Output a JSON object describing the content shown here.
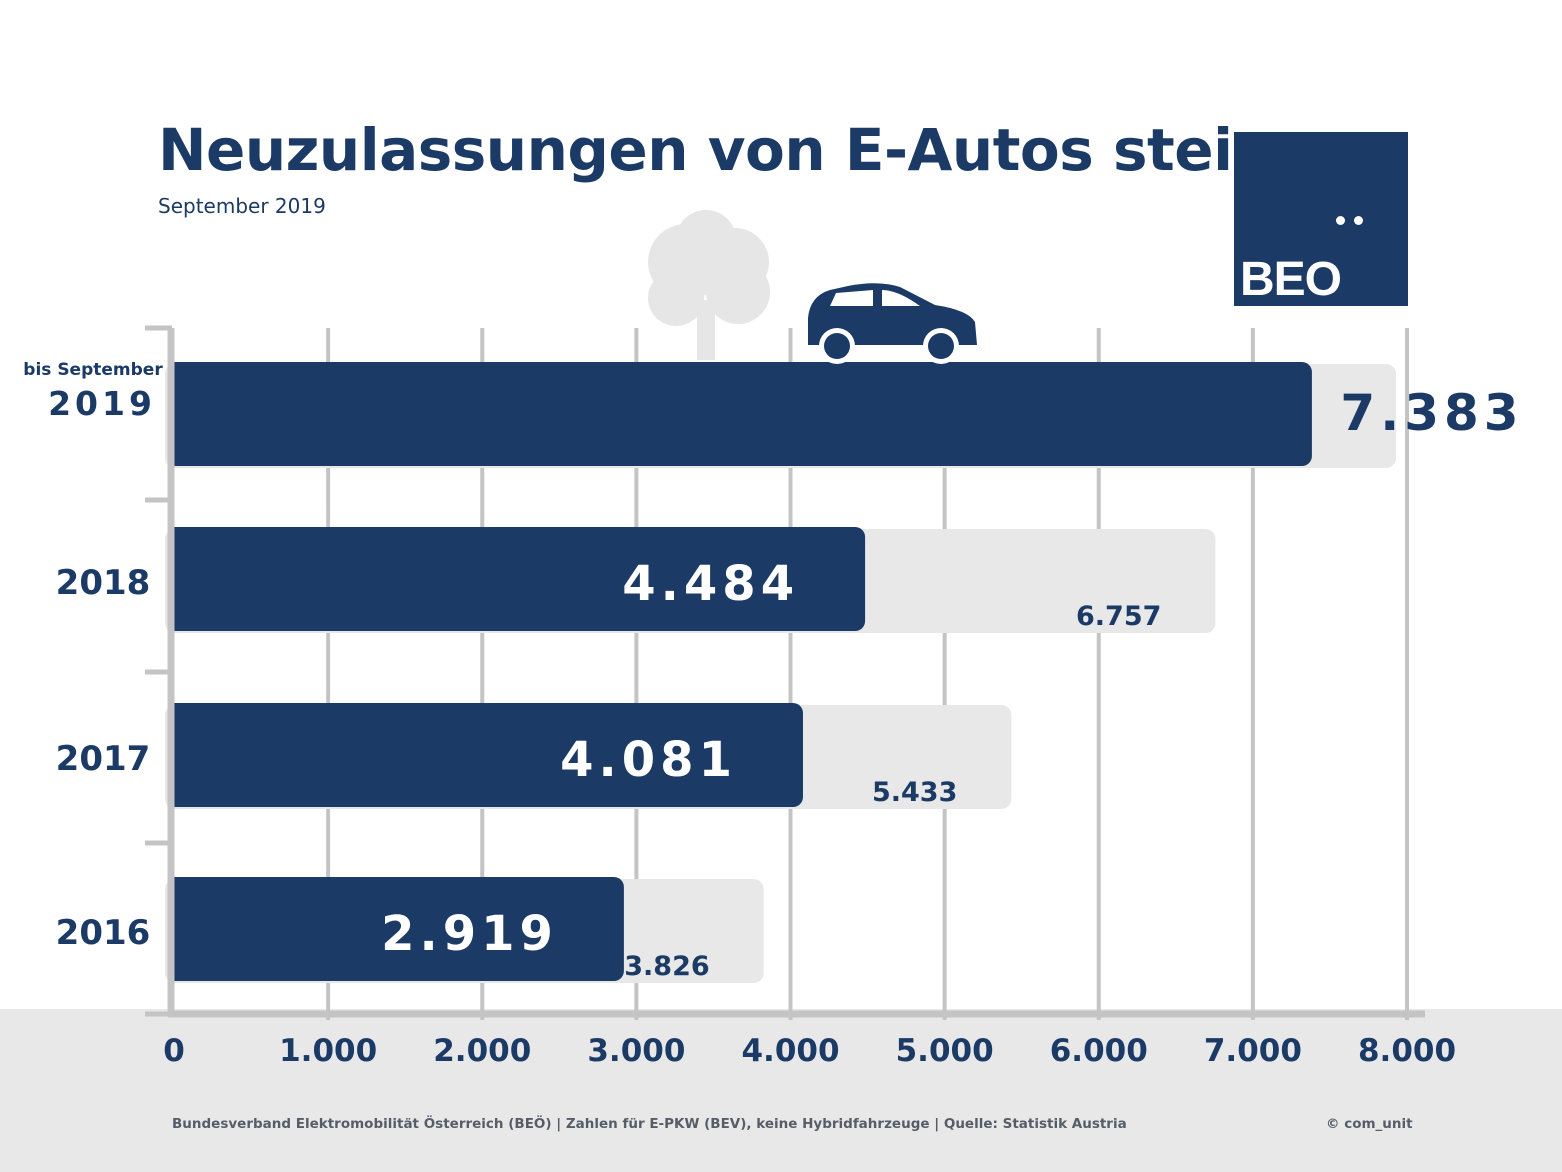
{
  "title": "Neuzulassungen von E-Autos steigen",
  "subtitle": "September 2019",
  "logo": {
    "text": "BEO"
  },
  "footer": {
    "source": "Bundesverband Elektromobilität Österreich (BEÖ) | Zahlen für E-PKW (BEV), keine Hybridfahrzeuge | Quelle: Statistik Austria",
    "copyright": "© com_unit"
  },
  "colors": {
    "bar": "#1b3a66",
    "track": "#e8e8e8",
    "grid": "#c4c4c4",
    "text": "#1b3a66"
  },
  "icons": [
    "car-icon",
    "tree-icon"
  ],
  "chart_data": {
    "type": "bar",
    "orientation": "horizontal",
    "categories": [
      "2019",
      "2018",
      "2017",
      "2016"
    ],
    "category_prefix": {
      "2019": "bis September"
    },
    "series": [
      {
        "values": [
          7383,
          4484,
          4081,
          2919
        ],
        "labels": [
          "7.383",
          "4.484",
          "4.081",
          "2.919"
        ]
      },
      {
        "values": [
          null,
          6757,
          5433,
          3826
        ],
        "labels": [
          "",
          "6.757",
          "5.433",
          "3.826"
        ]
      }
    ],
    "xlim": [
      0,
      8000
    ],
    "xticks": [
      0,
      1000,
      2000,
      3000,
      4000,
      5000,
      6000,
      7000,
      8000
    ],
    "xtick_labels": [
      "0",
      "1.000",
      "2.000",
      "3.000",
      "4.000",
      "5.000",
      "6.000",
      "7.000",
      "8.000"
    ],
    "grid": true
  }
}
